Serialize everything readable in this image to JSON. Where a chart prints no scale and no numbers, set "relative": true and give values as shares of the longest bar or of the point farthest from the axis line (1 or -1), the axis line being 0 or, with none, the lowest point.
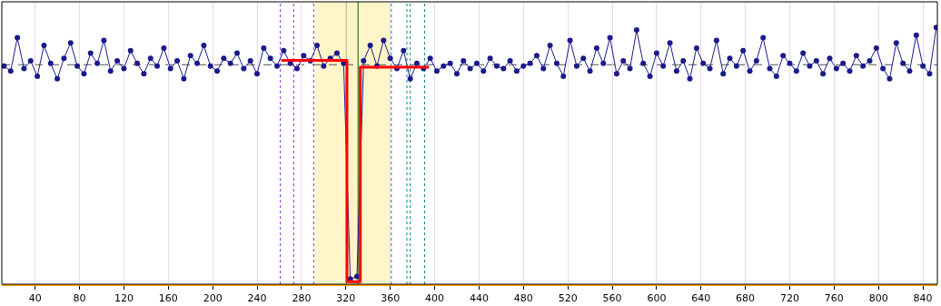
{
  "chart_data": {
    "type": "line",
    "relative": true,
    "grid": "x",
    "xlim": [
      10,
      853
    ],
    "xticks": [
      40,
      80,
      120,
      160,
      200,
      240,
      280,
      320,
      360,
      400,
      440,
      480,
      520,
      560,
      600,
      640,
      680,
      720,
      760,
      800,
      840
    ],
    "series": [
      {
        "color": "#1a1a8c",
        "marker": "circle",
        "x": [
          12,
          18,
          24,
          30,
          36,
          42,
          48,
          54,
          60,
          66,
          72,
          78,
          84,
          90,
          96,
          102,
          108,
          114,
          120,
          126,
          132,
          138,
          144,
          150,
          156,
          162,
          168,
          174,
          180,
          186,
          192,
          198,
          204,
          210,
          216,
          222,
          228,
          234,
          240,
          246,
          252,
          258,
          264,
          270,
          276,
          282,
          288,
          294,
          300,
          306,
          312,
          318,
          324,
          330,
          336,
          342,
          348,
          354,
          360,
          366,
          372,
          378,
          384,
          390,
          396,
          402,
          408,
          414,
          420,
          426,
          432,
          438,
          444,
          450,
          456,
          462,
          468,
          474,
          480,
          486,
          492,
          498,
          504,
          510,
          516,
          522,
          528,
          534,
          540,
          546,
          552,
          558,
          564,
          570,
          576,
          582,
          588,
          594,
          600,
          606,
          612,
          618,
          624,
          630,
          636,
          642,
          648,
          654,
          660,
          666,
          672,
          678,
          684,
          690,
          696,
          702,
          708,
          714,
          720,
          726,
          732,
          738,
          744,
          750,
          756,
          762,
          768,
          774,
          780,
          786,
          792,
          798,
          804,
          810,
          816,
          822,
          828,
          834,
          840,
          846,
          852
        ],
        "values": [
          0.85,
          0.83,
          0.96,
          0.84,
          0.87,
          0.81,
          0.93,
          0.86,
          0.8,
          0.88,
          0.94,
          0.85,
          0.82,
          0.9,
          0.86,
          0.95,
          0.83,
          0.87,
          0.84,
          0.91,
          0.86,
          0.82,
          0.88,
          0.85,
          0.92,
          0.84,
          0.87,
          0.8,
          0.89,
          0.86,
          0.93,
          0.85,
          0.83,
          0.88,
          0.86,
          0.9,
          0.84,
          0.87,
          0.82,
          0.92,
          0.88,
          0.85,
          0.91,
          0.86,
          0.84,
          0.89,
          0.87,
          0.93,
          0.85,
          0.88,
          0.9,
          0.86,
          0.02,
          0.03,
          0.87,
          0.93,
          0.85,
          0.95,
          0.88,
          0.84,
          0.91,
          0.8,
          0.86,
          0.84,
          0.88,
          0.83,
          0.85,
          0.86,
          0.82,
          0.87,
          0.84,
          0.86,
          0.83,
          0.88,
          0.85,
          0.84,
          0.87,
          0.83,
          0.85,
          0.86,
          0.89,
          0.84,
          0.93,
          0.86,
          0.81,
          0.95,
          0.85,
          0.88,
          0.83,
          0.92,
          0.86,
          0.96,
          0.82,
          0.87,
          0.84,
          0.99,
          0.86,
          0.81,
          0.9,
          0.85,
          0.94,
          0.83,
          0.87,
          0.8,
          0.92,
          0.86,
          0.84,
          0.95,
          0.82,
          0.88,
          0.85,
          0.91,
          0.83,
          0.87,
          0.96,
          0.84,
          0.81,
          0.89,
          0.86,
          0.83,
          0.9,
          0.85,
          0.87,
          0.82,
          0.88,
          0.84,
          0.86,
          0.83,
          0.89,
          0.85,
          0.87,
          0.92,
          0.84,
          0.8,
          0.94,
          0.86,
          0.83,
          0.97,
          0.85,
          0.82,
          1.0
        ]
      },
      {
        "color": "#ff0000",
        "marker": "none",
        "x": [
          262,
          321,
          321,
          333,
          333,
          395
        ],
        "values": [
          0.872,
          0.872,
          0.01,
          0.01,
          0.845,
          0.845
        ]
      }
    ],
    "bands": [
      {
        "axis": "x",
        "from": 292,
        "to": 360,
        "color": "#fff5c8"
      }
    ],
    "ref_lines": [
      {
        "axis": "y",
        "value": 0.855,
        "color": "#555555",
        "line_style": "dashed"
      },
      {
        "axis": "x",
        "value": 261,
        "color": "#8a2be2",
        "line_style": "dotted"
      },
      {
        "axis": "x",
        "value": 273,
        "color": "#8a2be2",
        "line_style": "dotted"
      },
      {
        "axis": "x",
        "value": 291,
        "color": "#8a2be2",
        "line_style": "dotted"
      },
      {
        "axis": "x",
        "value": 361,
        "color": "#008b8b",
        "line_style": "dotted"
      },
      {
        "axis": "x",
        "value": 375,
        "color": "#008b8b",
        "line_style": "dotted"
      },
      {
        "axis": "x",
        "value": 378,
        "color": "#008b8b",
        "line_style": "dotted"
      },
      {
        "axis": "x",
        "value": 391,
        "color": "#008b8b",
        "line_style": "dotted"
      },
      {
        "axis": "x",
        "value": 320,
        "color": "#006400",
        "line_style": "solid"
      },
      {
        "axis": "x",
        "value": 331,
        "color": "#006400",
        "line_style": "solid"
      }
    ]
  }
}
